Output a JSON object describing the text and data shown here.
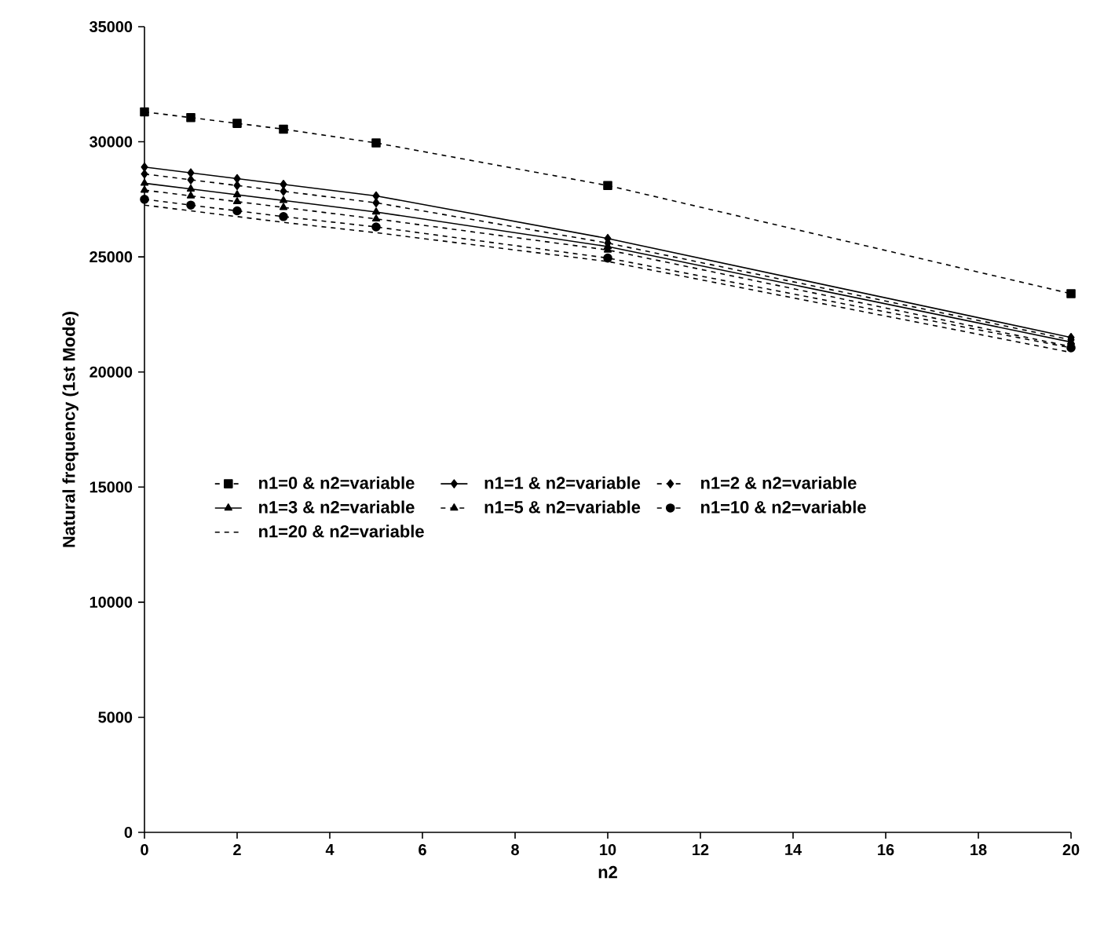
{
  "chart_data": {
    "type": "line",
    "xlabel": "n2",
    "ylabel": "Natural frequency (1st Mode)",
    "x": [
      0,
      1,
      2,
      3,
      5,
      10,
      20
    ],
    "series": [
      {
        "name": "n1=0 & n2=variable",
        "color": "#000000",
        "marker": "square",
        "line_style": "dashed",
        "values": [
          31300,
          31050,
          30800,
          30550,
          29950,
          28100,
          23400
        ]
      },
      {
        "name": "n1=1 & n2=variable",
        "color": "#000000",
        "marker": "diamond",
        "line_style": "solid",
        "values": [
          28900,
          28650,
          28400,
          28150,
          27650,
          25800,
          21500
        ]
      },
      {
        "name": "n1=2 & n2=variable",
        "color": "#000000",
        "marker": "diamond",
        "line_style": "dashed",
        "values": [
          28600,
          28350,
          28100,
          27850,
          27350,
          25600,
          21400
        ]
      },
      {
        "name": "n1=3 & n2=variable",
        "color": "#000000",
        "marker": "triangle",
        "line_style": "solid",
        "values": [
          28200,
          27950,
          27700,
          27450,
          26950,
          25450,
          21300
        ]
      },
      {
        "name": "n1=5 & n2=variable",
        "color": "#000000",
        "marker": "triangle",
        "line_style": "dashed",
        "values": [
          27900,
          27650,
          27400,
          27150,
          26650,
          25300,
          21100
        ]
      },
      {
        "name": "n1=10 & n2=variable",
        "color": "#000000",
        "marker": "circle",
        "line_style": "dashed",
        "values": [
          27500,
          27250,
          27000,
          26750,
          26300,
          24950,
          21050
        ]
      },
      {
        "name": "n1=20 & n2=variable",
        "color": "#000000",
        "marker": "none",
        "line_style": "dashed",
        "values": [
          27250,
          27000,
          26750,
          26500,
          26050,
          24800,
          20850
        ]
      }
    ],
    "xlim": [
      0,
      20
    ],
    "xticks": [
      0,
      2,
      4,
      6,
      8,
      10,
      12,
      14,
      16,
      18,
      20
    ],
    "ylim": [
      0,
      35000
    ],
    "yticks": [
      0,
      5000,
      10000,
      15000,
      20000,
      25000,
      30000,
      35000
    ],
    "grid": false,
    "legend": "left"
  }
}
